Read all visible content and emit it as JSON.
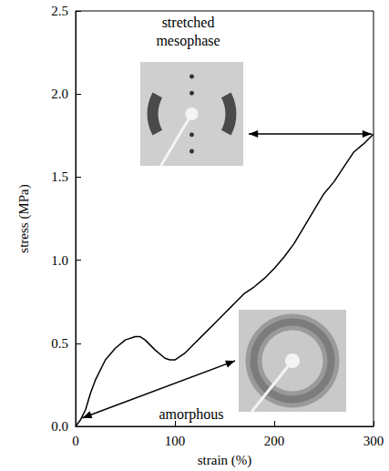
{
  "chart_data": {
    "type": "line",
    "xlabel": "strain (%)",
    "ylabel": "stress (MPa)",
    "x": [
      0,
      5,
      10,
      15,
      20,
      30,
      40,
      50,
      60,
      65,
      70,
      80,
      90,
      95,
      100,
      110,
      120,
      130,
      140,
      150,
      160,
      170,
      180,
      190,
      200,
      210,
      220,
      230,
      240,
      250,
      260,
      270,
      280,
      290,
      300
    ],
    "values": [
      0,
      0.04,
      0.1,
      0.2,
      0.28,
      0.4,
      0.47,
      0.52,
      0.54,
      0.54,
      0.52,
      0.46,
      0.41,
      0.4,
      0.4,
      0.44,
      0.5,
      0.56,
      0.62,
      0.68,
      0.74,
      0.8,
      0.84,
      0.89,
      0.95,
      1.02,
      1.1,
      1.2,
      1.3,
      1.4,
      1.47,
      1.56,
      1.65,
      1.7,
      1.76
    ],
    "color": "#000000",
    "xlim": [
      0,
      300
    ],
    "ylim": [
      0,
      2.5
    ],
    "xticks": [
      0,
      100,
      200,
      300
    ],
    "yticks": [
      {
        "value": 0,
        "label": "0.0"
      },
      {
        "value": 0.5,
        "label": "0.5"
      },
      {
        "value": 1,
        "label": "1.0"
      },
      {
        "value": 1.5,
        "label": "1.5"
      },
      {
        "value": 2,
        "label": "2.0"
      },
      {
        "value": 2.5,
        "label": "2.5"
      }
    ],
    "grid": false,
    "annotations": [
      {
        "text": "stretched mesophase"
      },
      {
        "text": "amorphous"
      }
    ]
  }
}
